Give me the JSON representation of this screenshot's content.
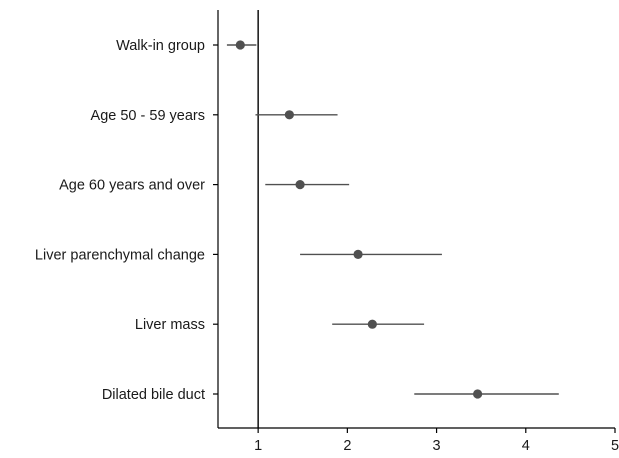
{
  "chart_data": {
    "type": "forest",
    "categories": [
      "Walk-in group",
      "Age 50 - 59 years",
      "Age 60 years and over",
      "Liver parenchymal change",
      "Liver mass",
      "Dilated bile duct"
    ],
    "estimates": [
      0.8,
      1.35,
      1.47,
      2.12,
      2.28,
      3.46
    ],
    "ci_lower": [
      0.65,
      0.97,
      1.08,
      1.47,
      1.83,
      2.75
    ],
    "ci_upper": [
      0.98,
      1.89,
      2.02,
      3.06,
      2.86,
      4.37
    ],
    "reference_line": 1,
    "xlim": [
      0.55,
      5.0
    ],
    "xticks": [
      1,
      2,
      3,
      4,
      5
    ],
    "xtick_labels": [
      "1",
      "2",
      "3",
      "4",
      "5"
    ],
    "title": "",
    "xlabel": "",
    "ylabel": "",
    "grid": false,
    "colors": {
      "point": "#505050",
      "ci_line": "#505050",
      "axis": "#000000",
      "reference": "#000000"
    }
  }
}
